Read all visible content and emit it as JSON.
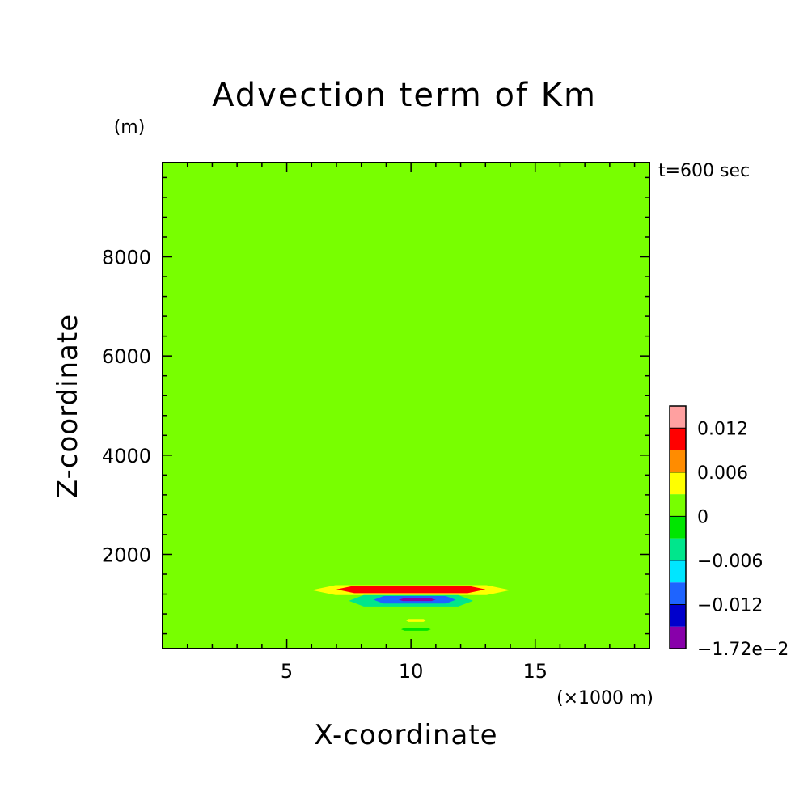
{
  "chart_data": {
    "type": "heatmap",
    "subtype": "filled-contour",
    "title": "Advection term of Km",
    "xlabel": "X-coordinate",
    "ylabel": "Z-coordinate",
    "x_unit": "(×1000 m)",
    "y_unit": "(m)",
    "time_label": "t=600 sec",
    "xlim": [
      0.0,
      19.6
    ],
    "ylim": [
      100,
      9900
    ],
    "xticks": [
      5,
      10,
      15
    ],
    "yticks": [
      2000,
      4000,
      6000,
      8000
    ],
    "grid": false,
    "colorbar": {
      "levels": [
        -0.0172,
        -0.015,
        -0.012,
        -0.009,
        -0.006,
        -0.003,
        0,
        0.003,
        0.006,
        0.009,
        0.012,
        0.015
      ],
      "colors": [
        "#8800aa",
        "#0000cc",
        "#1e64ff",
        "#00e6ff",
        "#00e68c",
        "#00e600",
        "#78ff00",
        "#ffff00",
        "#ff8c00",
        "#ff0000",
        "#ffa0a0"
      ],
      "tick_labels": [
        "0.012",
        "0.006",
        "0",
        "−0.006",
        "−0.012",
        "−1.72e−2"
      ]
    },
    "regions": [
      {
        "level": 0,
        "x_range": [
          0.0,
          5.8
        ],
        "z_range": [
          9620,
          9900
        ]
      },
      {
        "level": 0,
        "x_range": [
          5.8,
          14.2
        ],
        "z_range": [
          9540,
          9640
        ]
      },
      {
        "level": 0,
        "x_range": [
          14.2,
          19.6
        ],
        "z_range": [
          9620,
          9900
        ]
      },
      {
        "level": 0,
        "x_range": [
          6.0,
          14.0
        ],
        "z_range": [
          1350,
          1560
        ]
      },
      {
        "level": 0,
        "x_range": [
          0.5,
          19.6
        ],
        "z_range": [
          900,
          1300
        ]
      },
      {
        "level": 0,
        "x_range": [
          0.5,
          19.6
        ],
        "z_range": [
          750,
          900
        ]
      },
      {
        "level": 0,
        "x_range": [
          6.0,
          15.0
        ],
        "z_range": [
          380,
          650
        ]
      },
      {
        "level": 3,
        "x_range": [
          6.0,
          14.0
        ],
        "z_range": [
          1180,
          1380
        ]
      },
      {
        "level": 9,
        "x_range": [
          7.0,
          13.0
        ],
        "z_range": [
          1220,
          1370
        ]
      },
      {
        "level": 10,
        "x_range": [
          9.0,
          11.0
        ],
        "z_range": [
          1280,
          1360
        ]
      },
      {
        "level": -6,
        "x_range": [
          7.5,
          12.5
        ],
        "z_range": [
          950,
          1180
        ]
      },
      {
        "level": -12,
        "x_range": [
          8.5,
          11.8
        ],
        "z_range": [
          1010,
          1160
        ]
      },
      {
        "level": -17,
        "x_range": [
          9.5,
          11.0
        ],
        "z_range": [
          1060,
          1110
        ]
      },
      {
        "level": 3,
        "x_range": [
          9.8,
          10.6
        ],
        "z_range": [
          640,
          700
        ]
      },
      {
        "level": -3,
        "x_range": [
          9.6,
          10.8
        ],
        "z_range": [
          460,
          520
        ]
      }
    ]
  }
}
